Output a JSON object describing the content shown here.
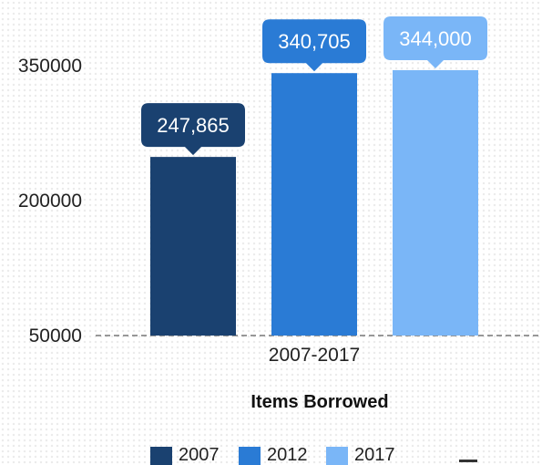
{
  "chart_data": {
    "type": "bar",
    "categories": [
      "2007-2017"
    ],
    "series": [
      {
        "name": "2007",
        "values": [
          247865
        ],
        "label": "247,865",
        "color": "#1a4170"
      },
      {
        "name": "2012",
        "values": [
          340705
        ],
        "label": "340,705",
        "color": "#2a7bd5"
      },
      {
        "name": "2017",
        "values": [
          344000
        ],
        "label": "344,000",
        "color": "#7ab6f7"
      }
    ],
    "y_ticks": [
      "350000",
      "200000",
      "50000"
    ],
    "ylim": [
      50000,
      350000
    ],
    "xlabel": "Items Borrowed",
    "ylabel": "",
    "title": "",
    "legend": "bottom",
    "grid": false
  }
}
